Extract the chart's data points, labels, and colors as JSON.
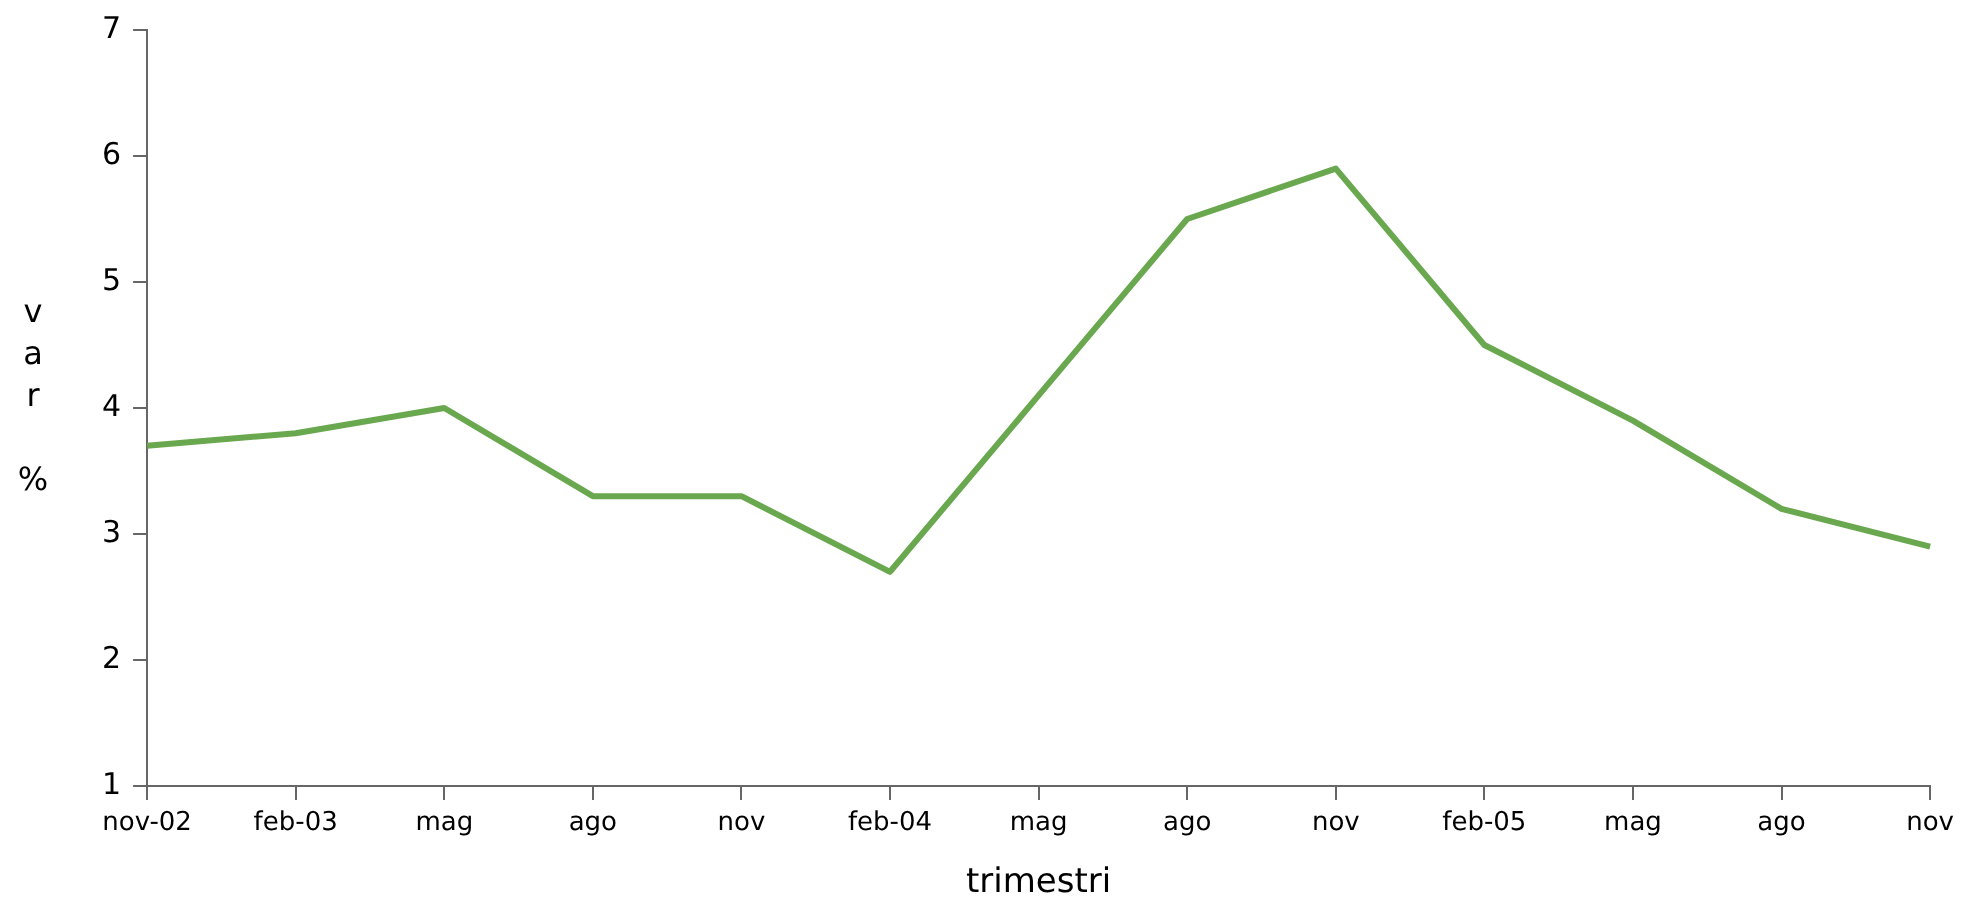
{
  "chart_data": {
    "type": "line",
    "xlabel": "trimestri",
    "ylabel": "var %",
    "categories": [
      "nov-02",
      "feb-03",
      "mag",
      "ago",
      "nov",
      "feb-04",
      "mag",
      "ago",
      "nov",
      "feb-05",
      "mag",
      "ago",
      "nov"
    ],
    "series": [
      {
        "color": "#6aa84f",
        "values": [
          3.7,
          3.8,
          4.0,
          3.3,
          3.3,
          2.7,
          4.1,
          5.5,
          5.9,
          4.5,
          3.9,
          3.2,
          2.9
        ]
      }
    ],
    "ylim": [
      1,
      7
    ],
    "yticks": [
      1,
      2,
      3,
      4,
      5,
      6,
      7
    ],
    "grid": false,
    "legend": false,
    "marker": "none",
    "line_style": "solid"
  }
}
